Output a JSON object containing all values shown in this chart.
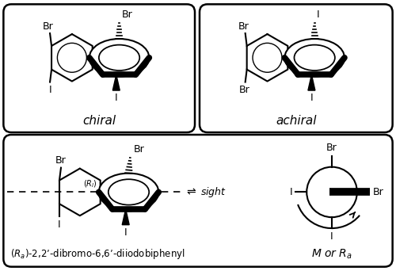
{
  "bg_color": "#ffffff",
  "line_color": "#000000",
  "chiral_label": "chiral",
  "achiral_label": "achiral",
  "bottom_name": "$(R_a)$-2,2’-dibromo-6,6’-diiodobiphenyl",
  "sight_label": "sight",
  "M_Ra_label": "$M$ or $R_a$",
  "Ra_center": "$(R_l)$"
}
